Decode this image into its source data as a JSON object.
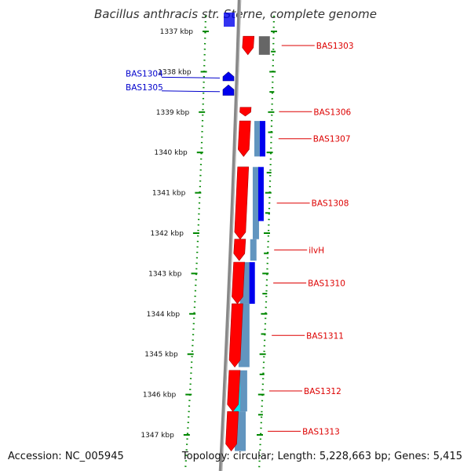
{
  "title": "Bacillus anthracis str. Sterne, complete genome",
  "footer": {
    "accession": "Accession: NC_005945",
    "summary": "Topology: circular; Length: 5,228,663 bp; Genes: 5,415"
  },
  "ruler": {
    "unit": "kbp",
    "start": 1337,
    "end": 1347,
    "labels": [
      "1337 kbp",
      "1338 kbp",
      "1339 kbp",
      "1340 kbp",
      "1341 kbp",
      "1342 kbp",
      "1343 kbp",
      "1344 kbp",
      "1345 kbp",
      "1346 kbp",
      "1347 kbp"
    ]
  },
  "colors": {
    "forward_cds": "#ff0000",
    "reverse_cds": "#0000ee",
    "forward_label": "#dd0000",
    "reverse_label": "#0000cc",
    "backbone": "#888888",
    "tick": "#008800",
    "analysis_dark_blue": "#0000ee",
    "analysis_steel": "#4682b4",
    "analysis_cyan": "#00e5ee",
    "analysis_gray": "#666666"
  },
  "genes": [
    {
      "name": "BAS1303",
      "strand": "+",
      "start": 1337.12,
      "end": 1337.58
    },
    {
      "name": "BAS1304",
      "strand": "-",
      "start": 1338.2,
      "end": 1338.42
    },
    {
      "name": "BAS1305",
      "strand": "-",
      "start": 1338.52,
      "end": 1338.78
    },
    {
      "name": "BAS1306",
      "strand": "+",
      "start": 1338.88,
      "end": 1339.1
    },
    {
      "name": "BAS1307",
      "strand": "+",
      "start": 1339.22,
      "end": 1340.1
    },
    {
      "name": "BAS1308",
      "strand": "+",
      "start": 1340.36,
      "end": 1342.15
    },
    {
      "name": "ilvH",
      "strand": "+",
      "start": 1342.15,
      "end": 1342.68
    },
    {
      "name": "BAS1310",
      "strand": "+",
      "start": 1342.72,
      "end": 1343.75
    },
    {
      "name": "BAS1311",
      "strand": "+",
      "start": 1343.75,
      "end": 1345.32
    },
    {
      "name": "BAS1312",
      "strand": "+",
      "start": 1345.4,
      "end": 1346.42
    },
    {
      "name": "BAS1313",
      "strand": "+",
      "start": 1346.42,
      "end": 1347.4
    }
  ],
  "analysis_blocks": [
    {
      "color": "analysis_gray",
      "start": 1337.12,
      "end": 1337.58
    },
    {
      "color": "analysis_steel",
      "start": 1339.22,
      "end": 1340.1
    },
    {
      "color": "analysis_dark_blue",
      "start": 1339.22,
      "end": 1340.1
    },
    {
      "color": "analysis_steel",
      "start": 1340.36,
      "end": 1342.15
    },
    {
      "color": "analysis_dark_blue",
      "start": 1340.36,
      "end": 1341.7
    },
    {
      "color": "analysis_steel",
      "start": 1342.15,
      "end": 1342.68
    },
    {
      "color": "analysis_steel",
      "start": 1342.72,
      "end": 1343.75
    },
    {
      "color": "analysis_dark_blue",
      "start": 1342.72,
      "end": 1343.75
    },
    {
      "color": "analysis_steel",
      "start": 1343.75,
      "end": 1345.32
    },
    {
      "color": "analysis_steel",
      "start": 1345.4,
      "end": 1346.42
    },
    {
      "color": "analysis_cyan",
      "start": 1345.4,
      "end": 1346.42
    },
    {
      "color": "analysis_steel",
      "start": 1346.42,
      "end": 1347.4
    }
  ]
}
